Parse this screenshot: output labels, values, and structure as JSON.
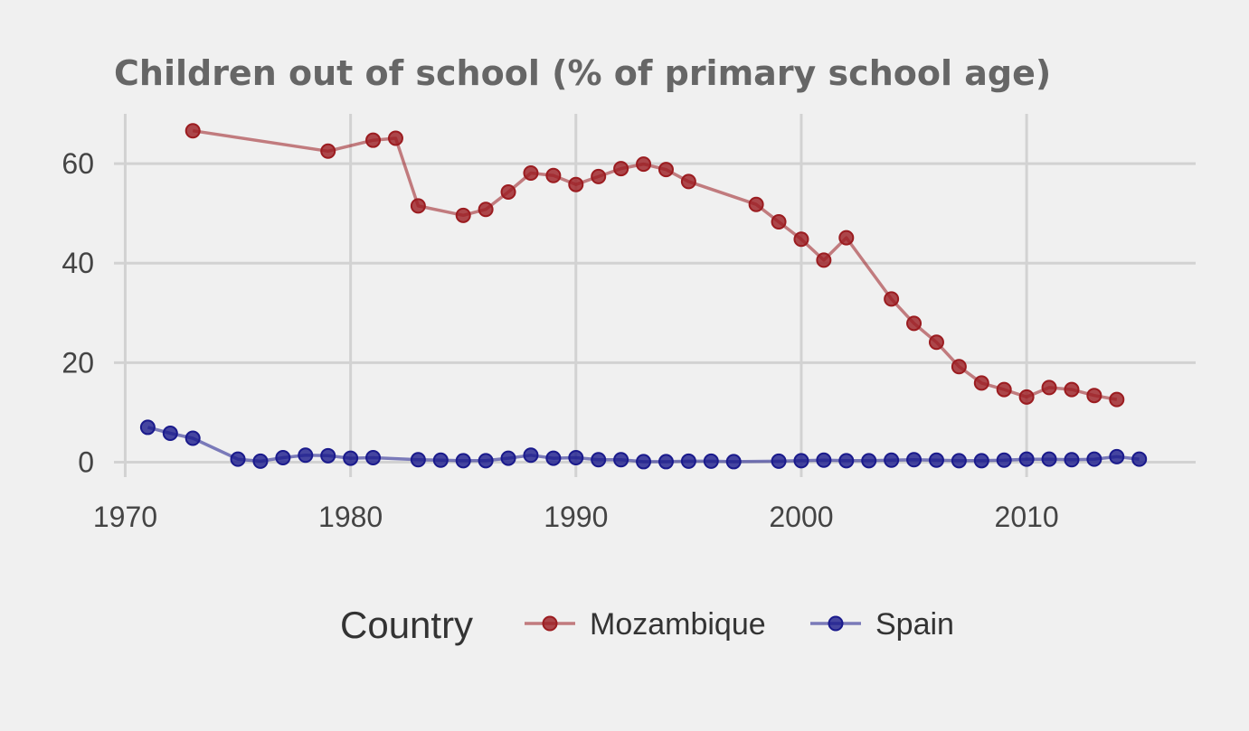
{
  "chart_data": {
    "type": "line",
    "title": "Children out of school (% of primary school age)",
    "xlabel": "",
    "ylabel": "",
    "xlim": [
      1969.5,
      2017.5
    ],
    "ylim": [
      -3,
      70
    ],
    "x_ticks": [
      "1970",
      "1980",
      "1990",
      "2000",
      "2010"
    ],
    "y_ticks": [
      "0",
      "20",
      "40",
      "60"
    ],
    "grid": true,
    "legend": {
      "title": "Country",
      "placement": "bottom"
    },
    "series": [
      {
        "name": "Mozambique",
        "color": "#9b1c20",
        "x": [
          1973,
          1979,
          1981,
          1982,
          1983,
          1985,
          1986,
          1987,
          1988,
          1989,
          1990,
          1991,
          1992,
          1993,
          1994,
          1995,
          1998,
          1999,
          2000,
          2001,
          2002,
          2004,
          2005,
          2006,
          2007,
          2008,
          2009,
          2010,
          2011,
          2012,
          2013,
          2014
        ],
        "values": [
          66.6,
          62.5,
          64.7,
          65.1,
          51.5,
          49.6,
          50.8,
          54.3,
          58.1,
          57.6,
          55.8,
          57.4,
          59.0,
          59.9,
          58.8,
          56.4,
          51.8,
          48.3,
          44.8,
          40.6,
          45.1,
          32.8,
          27.9,
          24.1,
          19.2,
          15.9,
          14.6,
          13.1,
          15.0,
          14.6,
          13.4,
          12.6
        ]
      },
      {
        "name": "Spain",
        "color": "#1a1a8c",
        "x": [
          1971,
          1972,
          1973,
          1975,
          1976,
          1977,
          1978,
          1979,
          1980,
          1981,
          1983,
          1984,
          1985,
          1986,
          1987,
          1988,
          1989,
          1990,
          1991,
          1992,
          1993,
          1994,
          1995,
          1996,
          1997,
          1999,
          2000,
          2001,
          2002,
          2003,
          2004,
          2005,
          2006,
          2007,
          2008,
          2009,
          2010,
          2011,
          2012,
          2013,
          2014,
          2015
        ],
        "values": [
          7.0,
          5.8,
          4.8,
          0.6,
          0.2,
          0.9,
          1.4,
          1.3,
          0.8,
          0.9,
          0.5,
          0.4,
          0.3,
          0.3,
          0.8,
          1.4,
          0.8,
          0.9,
          0.5,
          0.5,
          0.1,
          0.1,
          0.2,
          0.2,
          0.1,
          0.2,
          0.3,
          0.4,
          0.3,
          0.3,
          0.4,
          0.5,
          0.4,
          0.3,
          0.3,
          0.4,
          0.6,
          0.6,
          0.5,
          0.6,
          1.1,
          0.6
        ]
      }
    ]
  }
}
